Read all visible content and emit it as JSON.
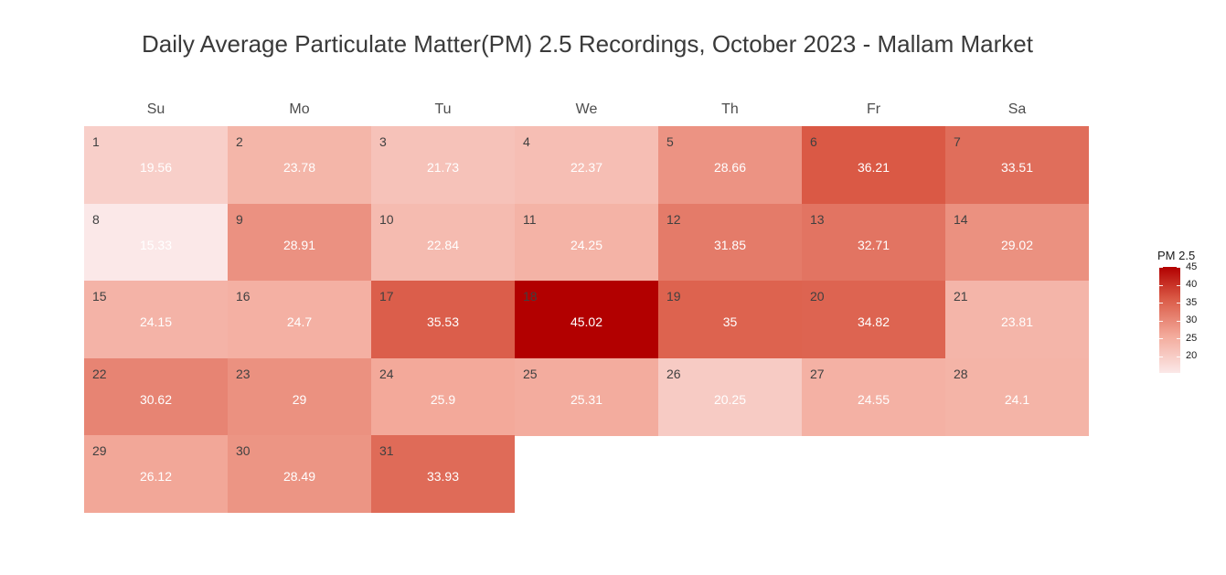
{
  "chart_data": {
    "type": "heatmap",
    "title": "Daily Average Particulate Matter(PM) 2.5 Recordings, October 2023 - Mallam Market",
    "weekdays": [
      "Su",
      "Mo",
      "Tu",
      "We",
      "Th",
      "Fr",
      "Sa"
    ],
    "first_weekday_index": 0,
    "days": [
      {
        "day": "1",
        "value": 19.56,
        "label": "19.56"
      },
      {
        "day": "2",
        "value": 23.78,
        "label": "23.78"
      },
      {
        "day": "3",
        "value": 21.73,
        "label": "21.73"
      },
      {
        "day": "4",
        "value": 22.37,
        "label": "22.37"
      },
      {
        "day": "5",
        "value": 28.66,
        "label": "28.66"
      },
      {
        "day": "6",
        "value": 36.21,
        "label": "36.21"
      },
      {
        "day": "7",
        "value": 33.51,
        "label": "33.51"
      },
      {
        "day": "8",
        "value": 15.33,
        "label": "15.33"
      },
      {
        "day": "9",
        "value": 28.91,
        "label": "28.91"
      },
      {
        "day": "10",
        "value": 22.84,
        "label": "22.84"
      },
      {
        "day": "11",
        "value": 24.25,
        "label": "24.25"
      },
      {
        "day": "12",
        "value": 31.85,
        "label": "31.85"
      },
      {
        "day": "13",
        "value": 32.71,
        "label": "32.71"
      },
      {
        "day": "14",
        "value": 29.02,
        "label": "29.02"
      },
      {
        "day": "15",
        "value": 24.15,
        "label": "24.15"
      },
      {
        "day": "16",
        "value": 24.7,
        "label": "24.7"
      },
      {
        "day": "17",
        "value": 35.53,
        "label": "35.53"
      },
      {
        "day": "18",
        "value": 45.02,
        "label": "45.02"
      },
      {
        "day": "19",
        "value": 35,
        "label": "35"
      },
      {
        "day": "20",
        "value": 34.82,
        "label": "34.82"
      },
      {
        "day": "21",
        "value": 23.81,
        "label": "23.81"
      },
      {
        "day": "22",
        "value": 30.62,
        "label": "30.62"
      },
      {
        "day": "23",
        "value": 29,
        "label": "29"
      },
      {
        "day": "24",
        "value": 25.9,
        "label": "25.9"
      },
      {
        "day": "25",
        "value": 25.31,
        "label": "25.31"
      },
      {
        "day": "26",
        "value": 20.25,
        "label": "20.25"
      },
      {
        "day": "27",
        "value": 24.55,
        "label": "24.55"
      },
      {
        "day": "28",
        "value": 24.1,
        "label": "24.1"
      },
      {
        "day": "29",
        "value": 26.12,
        "label": "26.12"
      },
      {
        "day": "30",
        "value": 28.49,
        "label": "28.49"
      },
      {
        "day": "31",
        "value": 33.93,
        "label": "33.93"
      }
    ],
    "legend": {
      "title": "PM 2.5",
      "ticks": [
        "45",
        "40",
        "35",
        "30",
        "25",
        "20"
      ],
      "tick_values": [
        45,
        40,
        35,
        30,
        25,
        20
      ],
      "range": [
        15.33,
        45.02
      ],
      "low_color": "#fbe8e8",
      "high_color": "#b20000"
    }
  }
}
